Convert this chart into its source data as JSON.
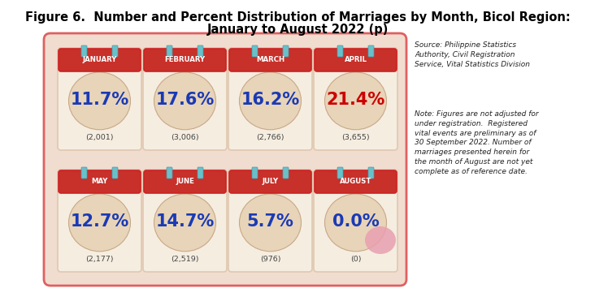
{
  "title_line1": "Figure 6.  Number and Percent Distribution of Marriages by Month, Bicol Region:",
  "title_line2": "January to August 2022 (p)",
  "months": [
    "JANUARY",
    "FEBRUARY",
    "MARCH",
    "APRIL",
    "MAY",
    "JUNE",
    "JULY",
    "AUGUST"
  ],
  "percents": [
    "11.7%",
    "17.6%",
    "16.2%",
    "21.4%",
    "12.7%",
    "14.7%",
    "5.7%",
    "0.0%"
  ],
  "counts": [
    "(2,001)",
    "(3,006)",
    "(2,766)",
    "(3,655)",
    "(2,177)",
    "(2,519)",
    "(976)",
    "(0)"
  ],
  "percent_colors": [
    "#1a3ab5",
    "#1a3ab5",
    "#1a3ab5",
    "#cc0000",
    "#1a3ab5",
    "#1a3ab5",
    "#1a3ab5",
    "#1a3ab5"
  ],
  "header_color": "#cc2222",
  "header_bg": "#c8302a",
  "calendar_bg": "#f5ede0",
  "calendar_border": "#e0c8b0",
  "oval_bg": "#e8d4b8",
  "outer_bg": "#f0ddd0",
  "outer_border": "#e06060",
  "pin_color": "#6ac0c8",
  "pin_border": "#4a9aaa",
  "source_text": "Source: Philippine Statistics\nAuthority, Civil Registration\nService, Vital Statistics Division",
  "note_text": "Note: Figures are not adjusted for\nunder registration.  Registered\nvital events are preliminary as of\n30 September 2022. Number of\nmarriages presented herein for\nthe month of August are not yet\ncomplete as of reference date.",
  "heart_color": "#e8a0b0",
  "title_fontsize": 10.5,
  "month_fontsize": 6.2,
  "percent_fontsize": 15,
  "count_fontsize": 6.8,
  "note_fontsize": 6.5
}
